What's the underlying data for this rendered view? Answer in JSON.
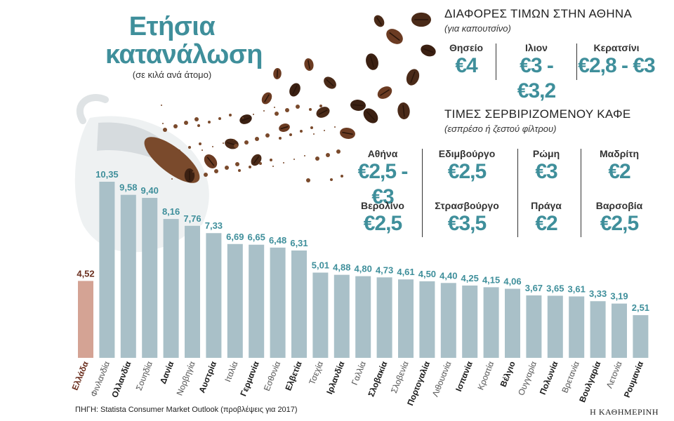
{
  "title": "Ετήσια κατανάλωση",
  "subtitle": "(σε κιλά ανά άτομο)",
  "source": "ΠΗΓΗ: Statista Consumer Market Outlook (προβλέψεις για 2017)",
  "publisher": "Η ΚΑΘΗΜΕΡΙΝΗ",
  "colors": {
    "highlight_bar": "#d4a394",
    "highlight_label": "#6b2f1f",
    "bar": "#a9c0c8",
    "value_text": "#3f8f9b",
    "accent": "#3f8f9b"
  },
  "cappuccino_panel": {
    "heading": "ΔΙΑΦΟΡΕΣ ΤΙΜΩΝ ΣΤΗΝ ΑΘΗΝΑ",
    "subheading": "(για καπουτσίνο)",
    "items": [
      {
        "city": "Θησείο",
        "price": "€4"
      },
      {
        "city": "Ιλιον",
        "price": "€3 - €3,2"
      },
      {
        "city": "Κερατσίνι",
        "price": "€2,8 - €3"
      }
    ]
  },
  "coffee_panel": {
    "heading": "ΤΙΜΕΣ ΣΕΡΒΙΡΙΖΟΜΕΝΟΥ ΚΑΦΕ",
    "subheading": "(εσπρέσο ή ζεστού φίλτρου)",
    "items": [
      {
        "city": "Αθήνα",
        "price": "€2,5 - €3"
      },
      {
        "city": "Εδιμβούργο",
        "price": "€2,5"
      },
      {
        "city": "Ρώμη",
        "price": "€3"
      },
      {
        "city": "Μαδρίτη",
        "price": "€2"
      },
      {
        "city": "Βερολίνο",
        "price": "€2,5"
      },
      {
        "city": "Στρασβούργο",
        "price": "€3,5"
      },
      {
        "city": "Πράγα",
        "price": "€2"
      },
      {
        "city": "Βαρσοβία",
        "price": "€2,5"
      }
    ]
  },
  "chart_data": {
    "type": "bar",
    "title": "Ετήσια κατανάλωση",
    "subtitle": "(σε κιλά ανά άτομο)",
    "categories": [
      "Ελλάδα",
      "Φινλανδία",
      "Ολλανδία",
      "Σουηδία",
      "Δανία",
      "Νορβηγία",
      "Αυστρία",
      "Ιταλία",
      "Γερμανία",
      "Εσθονία",
      "Ελβετία",
      "Τσεχία",
      "Ιρλανδία",
      "Γαλλία",
      "Σλοβακία",
      "Σλοβενία",
      "Πορτογαλία",
      "Λιθουανία",
      "Ισπανία",
      "Κροατία",
      "Βέλγιο",
      "Ουγγαρία",
      "Πολωνία",
      "Βρετανία",
      "Βουλγαρία",
      "Λετονία",
      "Ρουμανία"
    ],
    "values": [
      4.52,
      10.35,
      9.58,
      9.4,
      8.16,
      7.76,
      7.33,
      6.69,
      6.65,
      6.48,
      6.31,
      5.01,
      4.88,
      4.8,
      4.73,
      4.61,
      4.5,
      4.4,
      4.25,
      4.15,
      4.06,
      3.67,
      3.65,
      3.61,
      3.33,
      3.19,
      2.51
    ],
    "value_labels": [
      "4,52",
      "10,35",
      "9,58",
      "9,40",
      "8,16",
      "7,76",
      "7,33",
      "6,69",
      "6,65",
      "6,48",
      "6,31",
      "5,01",
      "4,88",
      "4,80",
      "4,73",
      "4,61",
      "4,50",
      "4,40",
      "4,25",
      "4,15",
      "4,06",
      "3,67",
      "3,65",
      "3,61",
      "3,33",
      "3,19",
      "2,51"
    ],
    "bold_labels": [
      true,
      false,
      true,
      false,
      true,
      false,
      true,
      false,
      true,
      false,
      true,
      false,
      true,
      false,
      true,
      false,
      true,
      false,
      true,
      false,
      true,
      false,
      true,
      false,
      true,
      false,
      true
    ],
    "highlight": "Ελλάδα",
    "ylim": [
      0,
      10.35
    ],
    "grid": false
  }
}
